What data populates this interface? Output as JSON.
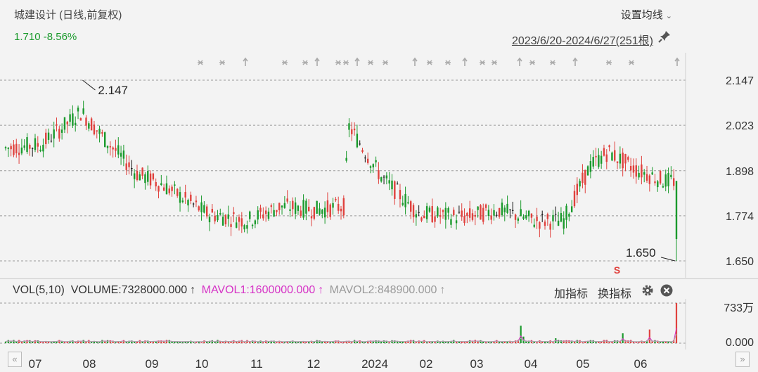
{
  "header": {
    "title": "城建设计 (日线,前复权)",
    "last_price": "1.710",
    "change_pct": "-8.56%",
    "settings_label": "设置均线",
    "date_range": "2023/6/20-2024/6/27(251根)"
  },
  "volume_panel": {
    "label": "VOL(5,10)",
    "volume": "VOLUME:7328000.000",
    "mavol1": "MAVOL1:1600000.000",
    "mavol2": "MAVOL2:848900.000",
    "add_indicator": "加指标",
    "switch_indicator": "换指标",
    "axis_top": "733万",
    "axis_zero": "0.000"
  },
  "nav": {
    "left": "«",
    "right": "»"
  },
  "colors": {
    "up": "#e0413d",
    "down": "#1a9a2c",
    "flat": "#111111",
    "mavol1": "#d633c6",
    "mavol2": "#aaaaaa",
    "grid": "#999999"
  },
  "chart_data": {
    "type": "candlestick",
    "title": "城建设计 (日线,前复权)",
    "price_axis_ticks": [
      "2.147",
      "2.023",
      "1.898",
      "1.774",
      "1.650"
    ],
    "ylim": [
      1.65,
      2.147
    ],
    "x_month_labels": [
      "07",
      "08",
      "09",
      "10",
      "11",
      "12",
      "2024",
      "02",
      "03",
      "04",
      "05",
      "06"
    ],
    "annotations": {
      "high_label": "2.147",
      "low_label": "1.650",
      "signal_mark": "S"
    },
    "series_close_approx": [
      {
        "date": "2023-06-20",
        "close": 1.96
      },
      {
        "date": "2023-07-10",
        "close": 1.97
      },
      {
        "date": "2023-08-01",
        "close": 2.06
      },
      {
        "date": "2023-08-15",
        "close": 1.98
      },
      {
        "date": "2023-09-01",
        "close": 1.89
      },
      {
        "date": "2023-09-15",
        "close": 1.86
      },
      {
        "date": "2023-10-10",
        "close": 1.78
      },
      {
        "date": "2023-11-01",
        "close": 1.76
      },
      {
        "date": "2023-11-20",
        "close": 1.8
      },
      {
        "date": "2023-12-10",
        "close": 1.79
      },
      {
        "date": "2023-12-25",
        "close": 1.8
      },
      {
        "date": "2023-12-28",
        "close": 2.02
      },
      {
        "date": "2024-01-15",
        "close": 1.88
      },
      {
        "date": "2024-02-05",
        "close": 1.78
      },
      {
        "date": "2024-03-01",
        "close": 1.77
      },
      {
        "date": "2024-03-20",
        "close": 1.79
      },
      {
        "date": "2024-04-10",
        "close": 1.76
      },
      {
        "date": "2024-04-25",
        "close": 1.76
      },
      {
        "date": "2024-05-10",
        "close": 1.91
      },
      {
        "date": "2024-05-20",
        "close": 1.95
      },
      {
        "date": "2024-06-05",
        "close": 1.9
      },
      {
        "date": "2024-06-20",
        "close": 1.87
      },
      {
        "date": "2024-06-26",
        "close": 1.87
      },
      {
        "date": "2024-06-27",
        "close": 1.71
      }
    ],
    "volume_axis": [
      "733万",
      "0.000"
    ],
    "last_volume": 7328000
  }
}
